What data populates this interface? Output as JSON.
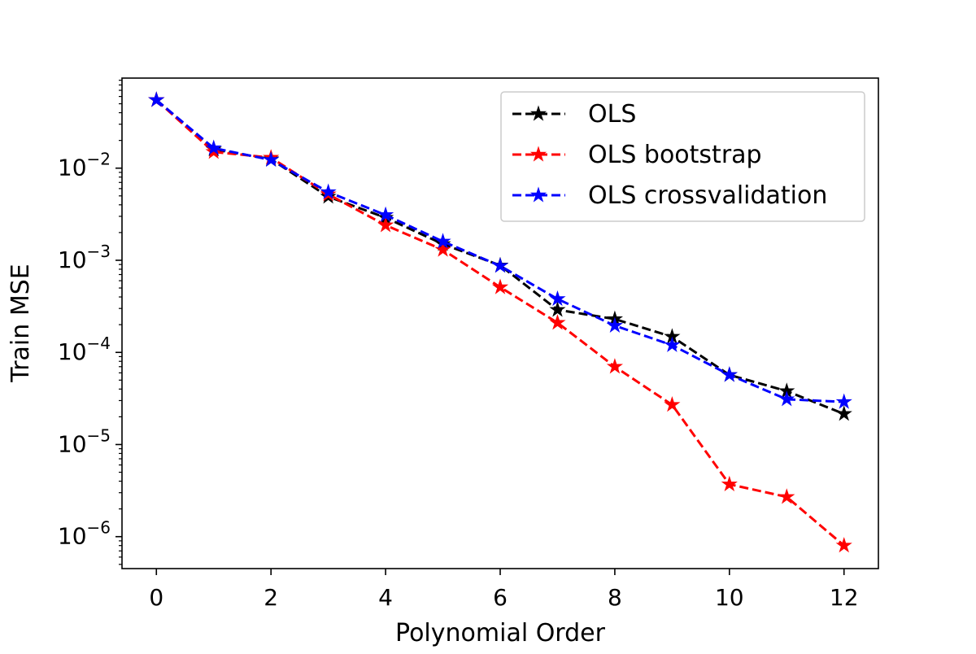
{
  "chart_data": {
    "type": "line",
    "title": "",
    "xlabel": "Polynomial Order",
    "ylabel": "Train MSE",
    "yscale": "log",
    "grid": false,
    "legend_position": "top-right",
    "xlim": [
      -0.6,
      12.6
    ],
    "ylim": [
      4.5e-07,
      0.095
    ],
    "x_ticks": [
      0,
      2,
      4,
      6,
      8,
      10,
      12
    ],
    "y_ticks": [
      {
        "value": 1e-06,
        "base": "10",
        "exp": "−6"
      },
      {
        "value": 1e-05,
        "base": "10",
        "exp": "−5"
      },
      {
        "value": 0.0001,
        "base": "10",
        "exp": "−4"
      },
      {
        "value": 0.001,
        "base": "10",
        "exp": "−3"
      },
      {
        "value": 0.01,
        "base": "10",
        "exp": "−2"
      }
    ],
    "x": [
      0,
      1,
      2,
      3,
      4,
      5,
      6,
      7,
      8,
      9,
      10,
      11,
      12
    ],
    "series": [
      {
        "name": "OLS",
        "color": "#000000",
        "line_style": "dashed",
        "marker": "star",
        "values": [
          0.055,
          0.016,
          0.0125,
          0.0049,
          0.0029,
          0.0015,
          0.00088,
          0.00029,
          0.00023,
          0.000148,
          5.7e-05,
          3.8e-05,
          2.15e-05
        ]
      },
      {
        "name": "OLS bootstrap",
        "color": "#ff0000",
        "line_style": "dashed",
        "marker": "star",
        "values": [
          0.055,
          0.015,
          0.013,
          0.0052,
          0.0024,
          0.0013,
          0.00051,
          0.00021,
          7e-05,
          2.7e-05,
          3.7e-06,
          2.7e-06,
          8e-07
        ]
      },
      {
        "name": "OLS crossvalidation",
        "color": "#0000ff",
        "line_style": "dashed",
        "marker": "star",
        "values": [
          0.055,
          0.0165,
          0.0123,
          0.0055,
          0.0031,
          0.0016,
          0.00087,
          0.00038,
          0.000195,
          0.00012,
          5.7e-05,
          3.1e-05,
          2.9e-05
        ]
      }
    ]
  }
}
